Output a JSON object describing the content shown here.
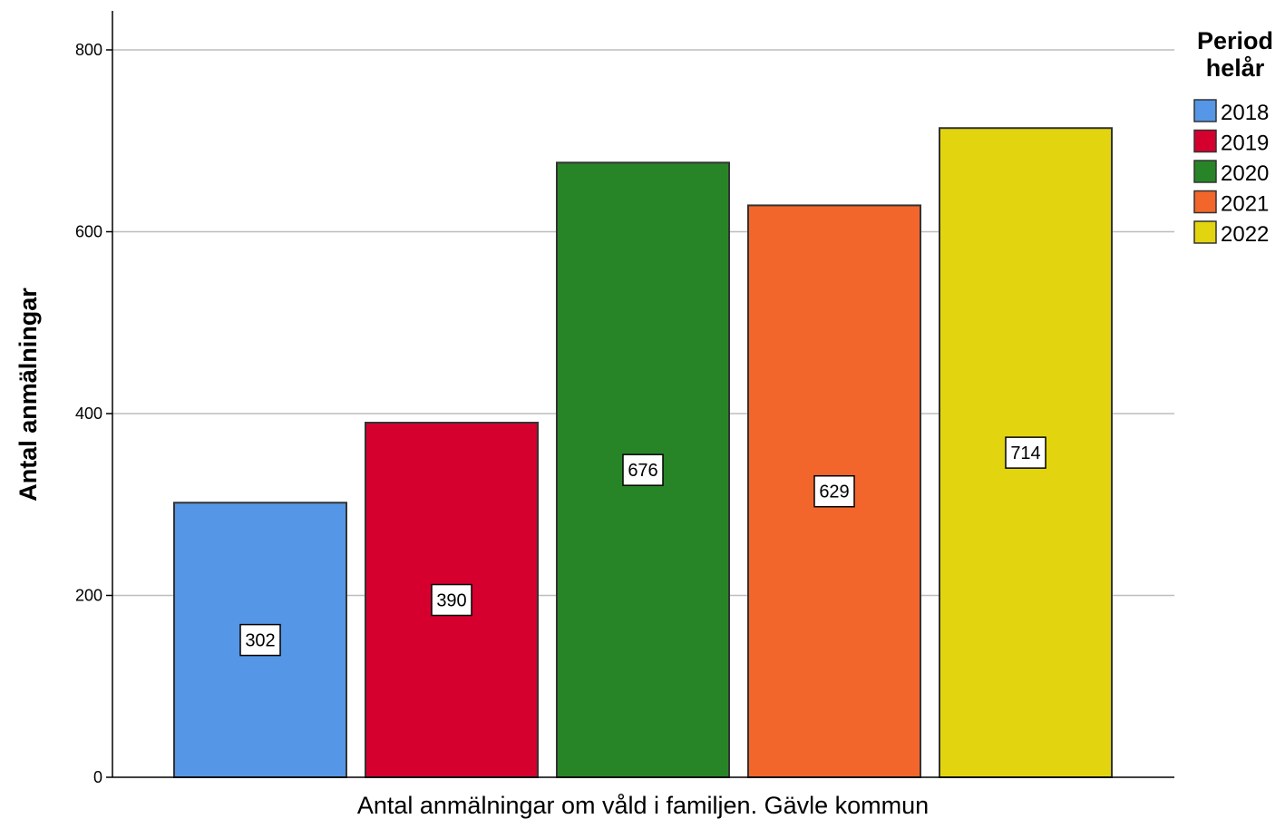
{
  "chart_data": {
    "type": "bar",
    "title": "",
    "xlabel": "Antal anmälningar om våld i familjen. Gävle kommun",
    "ylabel": "Antal anmälningar",
    "ylim": [
      0,
      800
    ],
    "yticks": [
      0,
      200,
      400,
      600,
      800
    ],
    "grid": true,
    "legend": {
      "title_lines": [
        "Period",
        "helår"
      ],
      "placement": "right-top"
    },
    "series": [
      {
        "name": "2018",
        "value": 302,
        "label": "302",
        "color": "#5596e6"
      },
      {
        "name": "2019",
        "value": 390,
        "label": "390",
        "color": "#d6002e"
      },
      {
        "name": "2020",
        "value": 676,
        "label": "676",
        "color": "#288527"
      },
      {
        "name": "2021",
        "value": 629,
        "label": "629",
        "color": "#f2662b"
      },
      {
        "name": "2022",
        "value": 714,
        "label": "714",
        "color": "#e2d50f"
      }
    ]
  }
}
